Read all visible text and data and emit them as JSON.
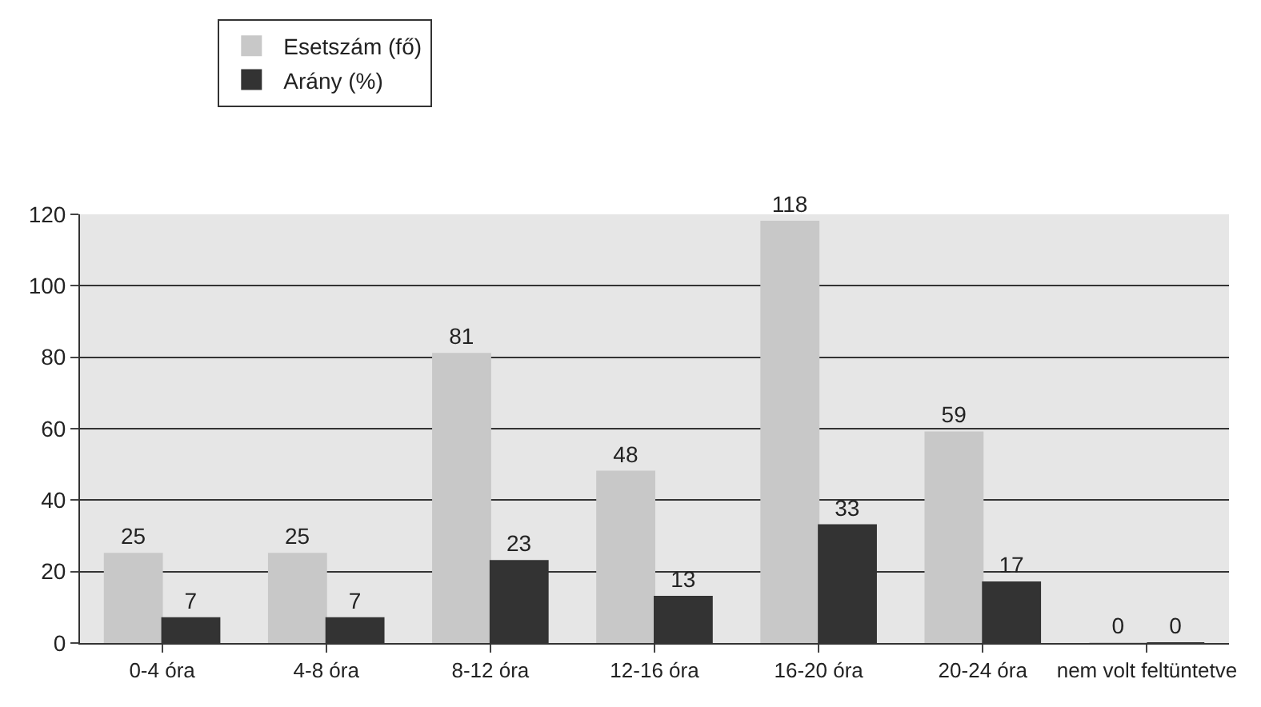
{
  "chart_data": {
    "type": "bar",
    "categories": [
      "0-4 óra",
      "4-8 óra",
      "8-12 óra",
      "12-16 óra",
      "16-20 óra",
      "20-24 óra",
      "nem volt feltüntetve"
    ],
    "series": [
      {
        "name": "Esetszám (fő)",
        "color": "#c8c8c8",
        "values": [
          25,
          25,
          81,
          48,
          118,
          59,
          0
        ]
      },
      {
        "name": "Arány (%)",
        "color": "#333333",
        "values": [
          7,
          7,
          23,
          13,
          33,
          17,
          0
        ]
      }
    ],
    "ylim": [
      0,
      120
    ],
    "yticks": [
      0,
      20,
      40,
      60,
      80,
      100,
      120
    ],
    "grid": "y",
    "legend": "top left",
    "data_labels": true
  }
}
